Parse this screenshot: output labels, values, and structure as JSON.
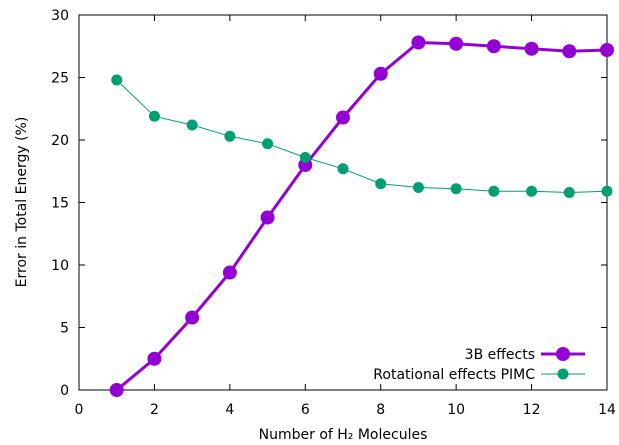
{
  "chart_data": {
    "type": "line",
    "xlabel": "Number of H₂ Molecules",
    "ylabel": "Error in Total Energy (%)",
    "xlim": [
      0,
      14
    ],
    "ylim": [
      0,
      30
    ],
    "xticks": [
      0,
      2,
      4,
      6,
      8,
      10,
      12,
      14
    ],
    "yticks": [
      0,
      5,
      10,
      15,
      20,
      25,
      30
    ],
    "grid": false,
    "legend_position": "bottom-right",
    "series": [
      {
        "name": "3B effects",
        "color": "#9400d3",
        "marker": "large-circle",
        "x": [
          1,
          2,
          3,
          4,
          5,
          6,
          7,
          8,
          9,
          10,
          11,
          12,
          13,
          14
        ],
        "y": [
          0.0,
          2.5,
          5.8,
          9.4,
          13.8,
          18.0,
          21.8,
          25.3,
          27.8,
          27.7,
          27.5,
          27.3,
          27.1,
          27.2
        ]
      },
      {
        "name": "Rotational effects PIMC",
        "color": "#009e73",
        "marker": "circle",
        "x": [
          1,
          2,
          3,
          4,
          5,
          6,
          7,
          8,
          9,
          10,
          11,
          12,
          13,
          14
        ],
        "y": [
          24.8,
          21.9,
          21.2,
          20.3,
          19.7,
          18.6,
          17.7,
          16.5,
          16.2,
          16.1,
          15.9,
          15.9,
          15.8,
          15.9
        ]
      }
    ]
  }
}
